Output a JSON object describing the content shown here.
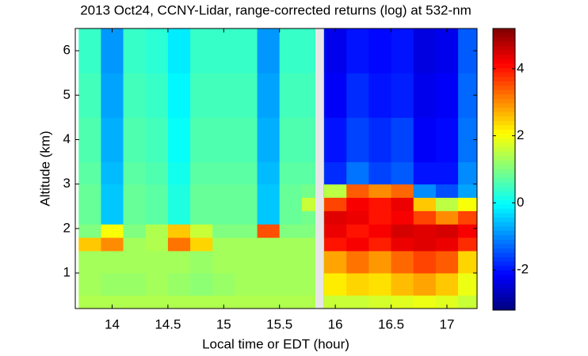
{
  "chart_data": {
    "type": "heatmap",
    "title": "2013 Oct24, CCNY-Lidar, range-corrected returns (log) at 532-nm",
    "x_label": "Local time or EDT (hour)",
    "y_label": "Altitude (km)",
    "colormap": "jet",
    "x_bins": [
      13.7,
      13.9,
      14.1,
      14.3,
      14.5,
      14.7,
      14.9,
      15.1,
      15.3,
      15.5,
      15.7,
      15.9,
      16.1,
      16.3,
      16.5,
      16.7,
      16.9,
      17.1,
      17.3
    ],
    "y_bins": [
      0.2,
      0.5,
      1.0,
      1.5,
      1.8,
      2.1,
      2.4,
      2.7,
      3.0,
      3.5,
      4.5,
      5.5,
      6.5
    ],
    "z": [
      [
        1.4,
        1.4,
        1.4,
        1.4,
        1.4,
        1.4,
        1.4,
        1.4,
        1.4,
        1.4,
        1.4,
        1.6,
        1.6,
        1.7,
        1.8,
        1.9,
        1.8,
        1.6
      ],
      [
        1.3,
        1.2,
        1.2,
        1.3,
        1.2,
        1.1,
        1.2,
        1.3,
        1.3,
        1.3,
        1.3,
        2.2,
        2.4,
        2.3,
        2.6,
        2.8,
        2.5,
        1.9
      ],
      [
        1.3,
        1.3,
        1.3,
        1.3,
        1.3,
        1.2,
        1.3,
        1.3,
        1.3,
        1.3,
        1.3,
        2.8,
        3.2,
        2.9,
        3.3,
        3.6,
        3.4,
        2.4
      ],
      [
        2.5,
        3.0,
        1.3,
        1.4,
        3.2,
        2.4,
        1.3,
        1.3,
        1.3,
        1.3,
        1.3,
        4.0,
        4.2,
        3.9,
        4.3,
        4.4,
        4.3,
        3.8
      ],
      [
        1.0,
        2.0,
        1.0,
        1.4,
        2.5,
        1.6,
        1.0,
        1.0,
        3.5,
        1.0,
        1.0,
        4.3,
        4.0,
        4.2,
        4.5,
        4.4,
        4.5,
        4.2
      ],
      [
        0.8,
        -0.5,
        0.8,
        0.7,
        0.2,
        0.8,
        0.8,
        0.8,
        -0.5,
        0.8,
        0.9,
        4.4,
        4.3,
        4.0,
        4.2,
        3.6,
        3.0,
        3.6
      ],
      [
        0.8,
        -0.5,
        0.8,
        0.7,
        0.2,
        0.8,
        0.8,
        0.8,
        -0.5,
        0.8,
        1.6,
        3.6,
        4.2,
        4.0,
        4.3,
        2.5,
        1.5,
        2.0
      ],
      [
        0.8,
        -0.5,
        0.8,
        0.7,
        0.2,
        0.8,
        0.8,
        0.8,
        -0.5,
        0.8,
        0.9,
        1.5,
        3.4,
        3.0,
        3.3,
        -1.0,
        -1.5,
        -0.8
      ],
      [
        0.7,
        -0.6,
        0.7,
        0.6,
        0.1,
        0.7,
        0.7,
        0.7,
        -0.6,
        0.7,
        0.7,
        -1.8,
        -1.2,
        -1.6,
        -1.4,
        -2.0,
        -2.0,
        -1.0
      ],
      [
        0.6,
        -0.7,
        0.6,
        0.5,
        0.0,
        0.6,
        0.6,
        0.6,
        -0.7,
        0.6,
        0.6,
        -2.0,
        -1.6,
        -1.8,
        -1.6,
        -2.2,
        -2.1,
        -1.2
      ],
      [
        0.5,
        -0.8,
        0.5,
        0.4,
        -0.1,
        0.5,
        0.5,
        0.5,
        -0.8,
        0.5,
        0.5,
        -2.2,
        -1.8,
        -2.0,
        -1.9,
        -2.3,
        -2.2,
        -1.3
      ],
      [
        0.4,
        -0.9,
        0.4,
        0.3,
        -0.2,
        0.4,
        0.4,
        0.4,
        -0.9,
        0.4,
        0.4,
        -2.3,
        -2.0,
        -2.1,
        -2.0,
        -2.4,
        -2.3,
        -1.4
      ]
    ],
    "xlim": [
      13.67,
      17.27
    ],
    "xticks": [
      14,
      14.5,
      15,
      15.5,
      16,
      16.5,
      17
    ],
    "ylim": [
      0.2,
      6.5
    ],
    "yticks": [
      1,
      2,
      3,
      4,
      5,
      6
    ],
    "clim": [
      -3.2,
      5.2
    ],
    "cticks": [
      -2,
      0,
      2,
      4
    ]
  }
}
